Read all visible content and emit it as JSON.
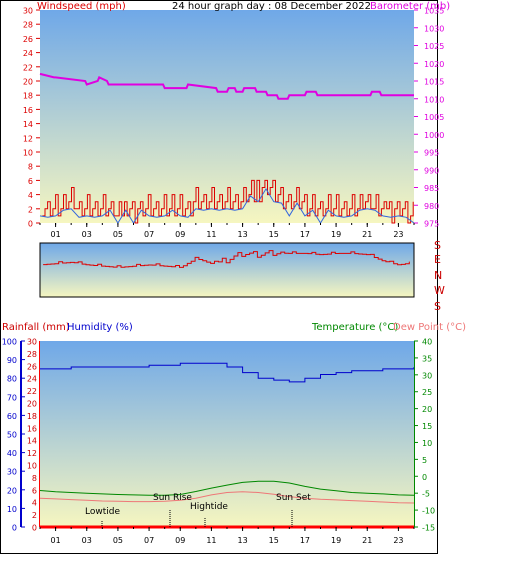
{
  "colors": {
    "wind": "#dd0000",
    "wind_avg": "#3366dd",
    "barometer": "#e000e0",
    "direction": "#dd0000",
    "humidity": "#0000cc",
    "temperature": "#008800",
    "dewpoint": "#ee7777",
    "rain": "#ff0000",
    "sky_top": "#6fa8e8",
    "sky_bottom": "#f6f6c0"
  },
  "header": {
    "left": "Windspeed (mph)",
    "center": "24 hour graph day : 08 December 2022",
    "right": "Barometer (mb)"
  },
  "middle": {
    "compass": [
      "S",
      "E",
      "N",
      "W",
      "S"
    ]
  },
  "lower_header": {
    "rainfall": "Rainfall (mm)",
    "humidity": "Humidity (%)",
    "temperature": "Temperature (°C)",
    "dewpoint": "Dew Point (°C)"
  },
  "annotations": {
    "lowtide": "Lowtide",
    "sunrise": "Sun Rise",
    "hightide": "Hightide",
    "sunset": "Sun Set"
  },
  "chart_data": [
    {
      "type": "line",
      "title": "24 hour graph day : 08 December 2022",
      "x_ticks": [
        "01",
        "03",
        "05",
        "07",
        "09",
        "11",
        "13",
        "15",
        "17",
        "19",
        "21",
        "23"
      ],
      "y_left": {
        "label": "Windspeed (mph)",
        "ticks": [
          0,
          2,
          4,
          6,
          8,
          10,
          12,
          14,
          16,
          18,
          20,
          22,
          24,
          26,
          28,
          30
        ],
        "ylim": [
          0,
          30
        ]
      },
      "y_right": {
        "label": "Barometer (mb)",
        "ticks": [
          975,
          980,
          985,
          990,
          995,
          1000,
          1005,
          1010,
          1015,
          1020,
          1025,
          1030,
          1035
        ],
        "ylim": [
          975,
          1035
        ]
      },
      "series": [
        {
          "name": "Windspeed (mph)",
          "axis": "left",
          "x": [
            0,
            0.5,
            1,
            1.5,
            2,
            2.5,
            3,
            3.5,
            4,
            4.5,
            5,
            5.5,
            6,
            6.5,
            7,
            7.5,
            8,
            8.5,
            9,
            9.5,
            10,
            10.5,
            11,
            11.5,
            12,
            12.5,
            13,
            13.5,
            14,
            14.5,
            15,
            15.5,
            16,
            16.5,
            17,
            17.5,
            18,
            18.5,
            19,
            19.5,
            20,
            20.5,
            21,
            21.5,
            22,
            22.5,
            23,
            23.5,
            24
          ],
          "values": [
            2,
            1,
            2,
            2,
            3,
            1,
            2,
            1,
            2,
            2,
            1,
            2,
            1,
            2,
            2,
            1,
            2,
            2,
            2,
            1,
            3,
            2,
            3,
            2,
            3,
            2,
            3,
            4,
            4,
            5,
            4,
            3,
            2,
            3,
            2,
            2,
            1,
            2,
            2,
            1,
            2,
            2,
            3,
            2,
            2,
            1,
            2,
            1,
            1
          ]
        },
        {
          "name": "Barometer (mb)",
          "axis": "right",
          "x": [
            0,
            0.9,
            1,
            2.9,
            3,
            3.7,
            3.8,
            4.3,
            4.4,
            7.9,
            8,
            9.4,
            9.5,
            11.3,
            11.4,
            12,
            12.1,
            12.5,
            12.6,
            13,
            13.1,
            13.8,
            13.9,
            14.5,
            14.6,
            15.2,
            15.3,
            15.9,
            16,
            16.5,
            16.6,
            17,
            17.1,
            17.7,
            17.8,
            19.6,
            19.7,
            21.2,
            21.3,
            21.8,
            21.9,
            24
          ],
          "values": [
            1017,
            1016,
            1016,
            1015,
            1014,
            1015,
            1016,
            1015,
            1014,
            1014,
            1013,
            1013,
            1014,
            1013,
            1012,
            1012,
            1013,
            1013,
            1012,
            1012,
            1013,
            1013,
            1012,
            1012,
            1011,
            1011,
            1010,
            1010,
            1011,
            1011,
            1011,
            1011,
            1012,
            1012,
            1011,
            1011,
            1011,
            1011,
            1012,
            1012,
            1011,
            1011
          ]
        }
      ]
    },
    {
      "type": "line",
      "y_labels": [
        "S",
        "E",
        "N",
        "W",
        "S"
      ],
      "series": [
        {
          "name": "Wind direction",
          "x": [
            0,
            1,
            2,
            3,
            4,
            5,
            6,
            7,
            8,
            9,
            10,
            11,
            12,
            13,
            14,
            15,
            16,
            17,
            18,
            19,
            20,
            21,
            22,
            23,
            24
          ],
          "values": [
            200,
            205,
            210,
            200,
            195,
            190,
            195,
            200,
            195,
            190,
            225,
            205,
            220,
            245,
            240,
            248,
            245,
            245,
            240,
            245,
            245,
            240,
            215,
            200,
            210
          ]
        }
      ]
    },
    {
      "type": "line",
      "x_ticks": [
        "01",
        "03",
        "05",
        "07",
        "09",
        "11",
        "13",
        "15",
        "17",
        "19",
        "21",
        "23"
      ],
      "y_axes": [
        {
          "label": "Humidity (%)",
          "ticks": [
            0,
            10,
            20,
            30,
            40,
            50,
            60,
            70,
            80,
            90,
            100
          ],
          "ylim": [
            0,
            100
          ]
        },
        {
          "label": "Rainfall (mm)",
          "ticks": [
            0,
            2,
            4,
            6,
            8,
            10,
            12,
            14,
            16,
            18,
            20,
            22,
            24,
            26,
            28,
            30
          ],
          "ylim": [
            0,
            30
          ]
        },
        {
          "label": "Temperature (°C)",
          "ticks": [
            -15,
            -10,
            -5,
            0,
            5,
            10,
            15,
            20,
            25,
            30,
            35,
            40
          ],
          "ylim": [
            -15,
            40
          ]
        }
      ],
      "series": [
        {
          "name": "Humidity (%)",
          "axis": "Humidity (%)",
          "x": [
            0,
            1,
            2,
            3,
            4,
            5,
            6,
            7,
            8,
            9,
            10,
            11,
            12,
            13,
            14,
            15,
            16,
            17,
            18,
            19,
            20,
            21,
            22,
            23,
            24
          ],
          "values": [
            85,
            85,
            86,
            86,
            86,
            86,
            86,
            87,
            87,
            88,
            88,
            88,
            86,
            83,
            80,
            79,
            78,
            80,
            82,
            83,
            84,
            84,
            85,
            85,
            86
          ]
        },
        {
          "name": "Temperature (°C)",
          "axis": "Temperature (°C)",
          "x": [
            0,
            1,
            2,
            3,
            4,
            5,
            6,
            7,
            8,
            9,
            10,
            11,
            12,
            13,
            14,
            15,
            16,
            17,
            18,
            19,
            20,
            21,
            22,
            23,
            24
          ],
          "values": [
            -4.2,
            -4.6,
            -4.8,
            -5,
            -5.2,
            -5.4,
            -5.5,
            -5.6,
            -5.6,
            -5.4,
            -4.5,
            -3.5,
            -2.6,
            -1.8,
            -1.5,
            -1.5,
            -2,
            -3,
            -3.8,
            -4.3,
            -4.8,
            -5,
            -5.2,
            -5.5,
            -5.6
          ]
        },
        {
          "name": "Dew Point (°C)",
          "axis": "Temperature (°C)",
          "x": [
            0,
            1,
            2,
            3,
            4,
            5,
            6,
            7,
            8,
            9,
            10,
            11,
            12,
            13,
            14,
            15,
            16,
            17,
            18,
            19,
            20,
            21,
            22,
            23,
            24
          ],
          "values": [
            -6.5,
            -6.7,
            -6.9,
            -7.1,
            -7.3,
            -7.4,
            -7.5,
            -7.5,
            -7.4,
            -7.1,
            -6.5,
            -5.5,
            -4.8,
            -4.6,
            -4.8,
            -5.3,
            -6,
            -6.5,
            -6.8,
            -7,
            -7.2,
            -7.4,
            -7.6,
            -7.8,
            -7.9
          ]
        },
        {
          "name": "Rainfall (mm)",
          "axis": "Rainfall (mm)",
          "x": [
            0,
            24
          ],
          "values": [
            0,
            0
          ]
        }
      ]
    }
  ]
}
